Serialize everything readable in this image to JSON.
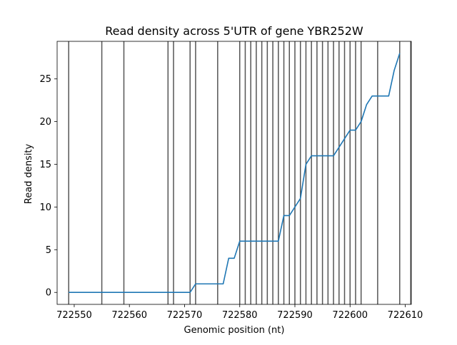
{
  "chart_data": {
    "type": "line",
    "title": "Read density across 5'UTR of gene YBR252W",
    "xlabel": "Genomic position (nt)",
    "ylabel": "Read density",
    "xlim": [
      722546.9,
      722611.1
    ],
    "ylim": [
      -1.4,
      29.4
    ],
    "grid": false,
    "xticks": [
      722550,
      722560,
      722570,
      722580,
      722590,
      722600,
      722610
    ],
    "yticks": [
      0,
      5,
      10,
      15,
      20,
      25
    ],
    "vlines": [
      722549,
      722555,
      722559,
      722567,
      722568,
      722571,
      722572,
      722576,
      722580,
      722581,
      722582,
      722583,
      722584,
      722585,
      722586,
      722587,
      722588,
      722589,
      722590,
      722591,
      722592,
      722593,
      722594,
      722595,
      722596,
      722597,
      722598,
      722599,
      722600,
      722601,
      722602,
      722605,
      722609,
      722611
    ],
    "series": [
      {
        "color": "#1f77b4",
        "x": [
          722549,
          722550,
          722551,
          722552,
          722553,
          722554,
          722555,
          722556,
          722557,
          722558,
          722559,
          722560,
          722561,
          722562,
          722563,
          722564,
          722565,
          722566,
          722567,
          722568,
          722569,
          722570,
          722571,
          722572,
          722573,
          722574,
          722575,
          722576,
          722577,
          722578,
          722579,
          722580,
          722581,
          722582,
          722583,
          722584,
          722585,
          722586,
          722587,
          722588,
          722589,
          722590,
          722591,
          722592,
          722593,
          722594,
          722595,
          722596,
          722597,
          722598,
          722599,
          722600,
          722601,
          722602,
          722603,
          722604,
          722605,
          722606,
          722607,
          722608,
          722609
        ],
        "y": [
          0,
          0,
          0,
          0,
          0,
          0,
          0,
          0,
          0,
          0,
          0,
          0,
          0,
          0,
          0,
          0,
          0,
          0,
          0,
          0,
          0,
          0,
          0,
          1,
          1,
          1,
          1,
          1,
          1,
          4,
          4,
          6,
          6,
          6,
          6,
          6,
          6,
          6,
          6,
          9,
          9,
          10,
          11,
          15,
          16,
          16,
          16,
          16,
          16,
          17,
          18,
          19,
          19,
          20,
          22,
          23,
          23,
          23,
          23,
          26,
          28
        ]
      }
    ]
  },
  "colors": {
    "line": "#1f77b4",
    "vline": "#555555",
    "axes": "#000000",
    "background": "#ffffff"
  }
}
